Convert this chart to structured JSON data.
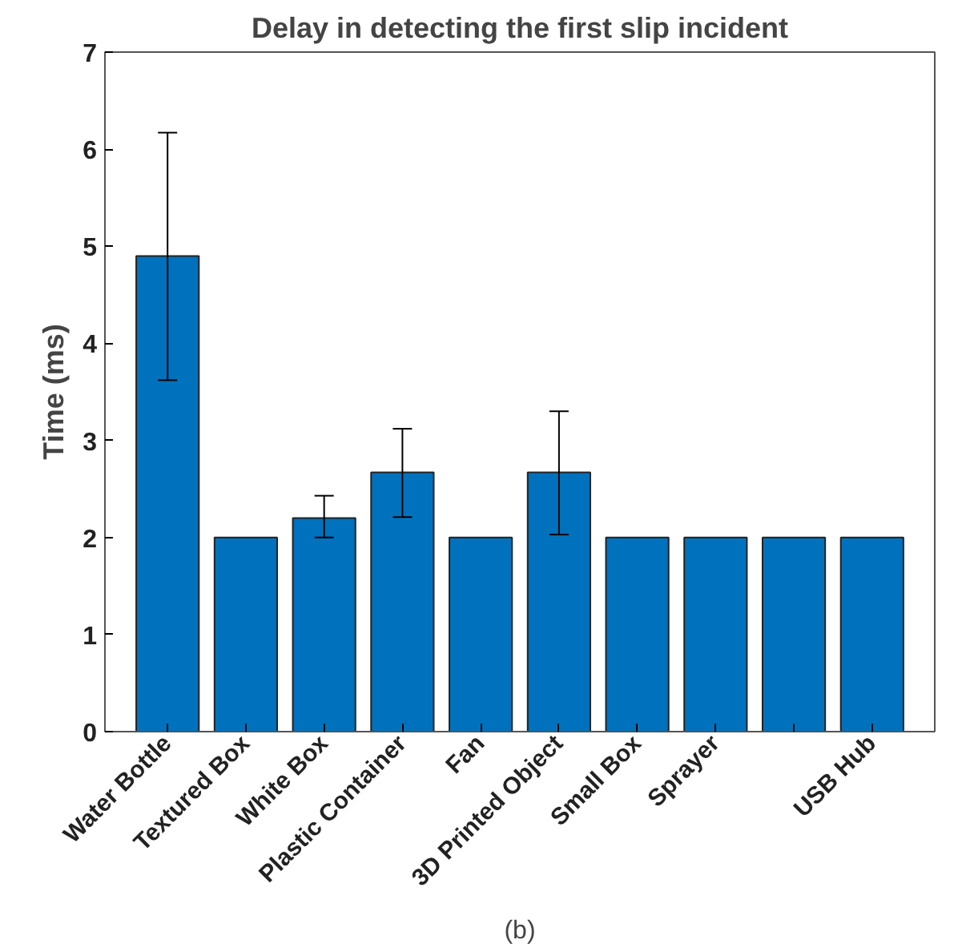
{
  "chart_data": {
    "type": "bar",
    "title": "Delay in detecting the first slip incident",
    "ylabel": "Time (ms)",
    "categories": [
      "Water Bottle",
      "Textured Box",
      "White Box",
      "Plastic Container",
      "Fan",
      "3D Printed Object",
      "Small Box",
      "Sprayer",
      null,
      "USB Hub"
    ],
    "values": [
      4.9,
      2,
      2.2,
      2.67,
      2,
      2.67,
      2,
      2,
      2,
      2
    ],
    "errors": [
      [
        3.62,
        6.17
      ],
      null,
      [
        2.0,
        2.43
      ],
      [
        2.21,
        3.12
      ],
      null,
      [
        2.03,
        3.3
      ],
      null,
      null,
      null,
      null
    ],
    "color": "#0072bd",
    "ylim": [
      0,
      7
    ],
    "yticks": [
      0,
      1,
      2,
      3,
      4,
      5,
      6,
      7
    ],
    "grid": false,
    "annotations": [
      "(b)"
    ]
  }
}
